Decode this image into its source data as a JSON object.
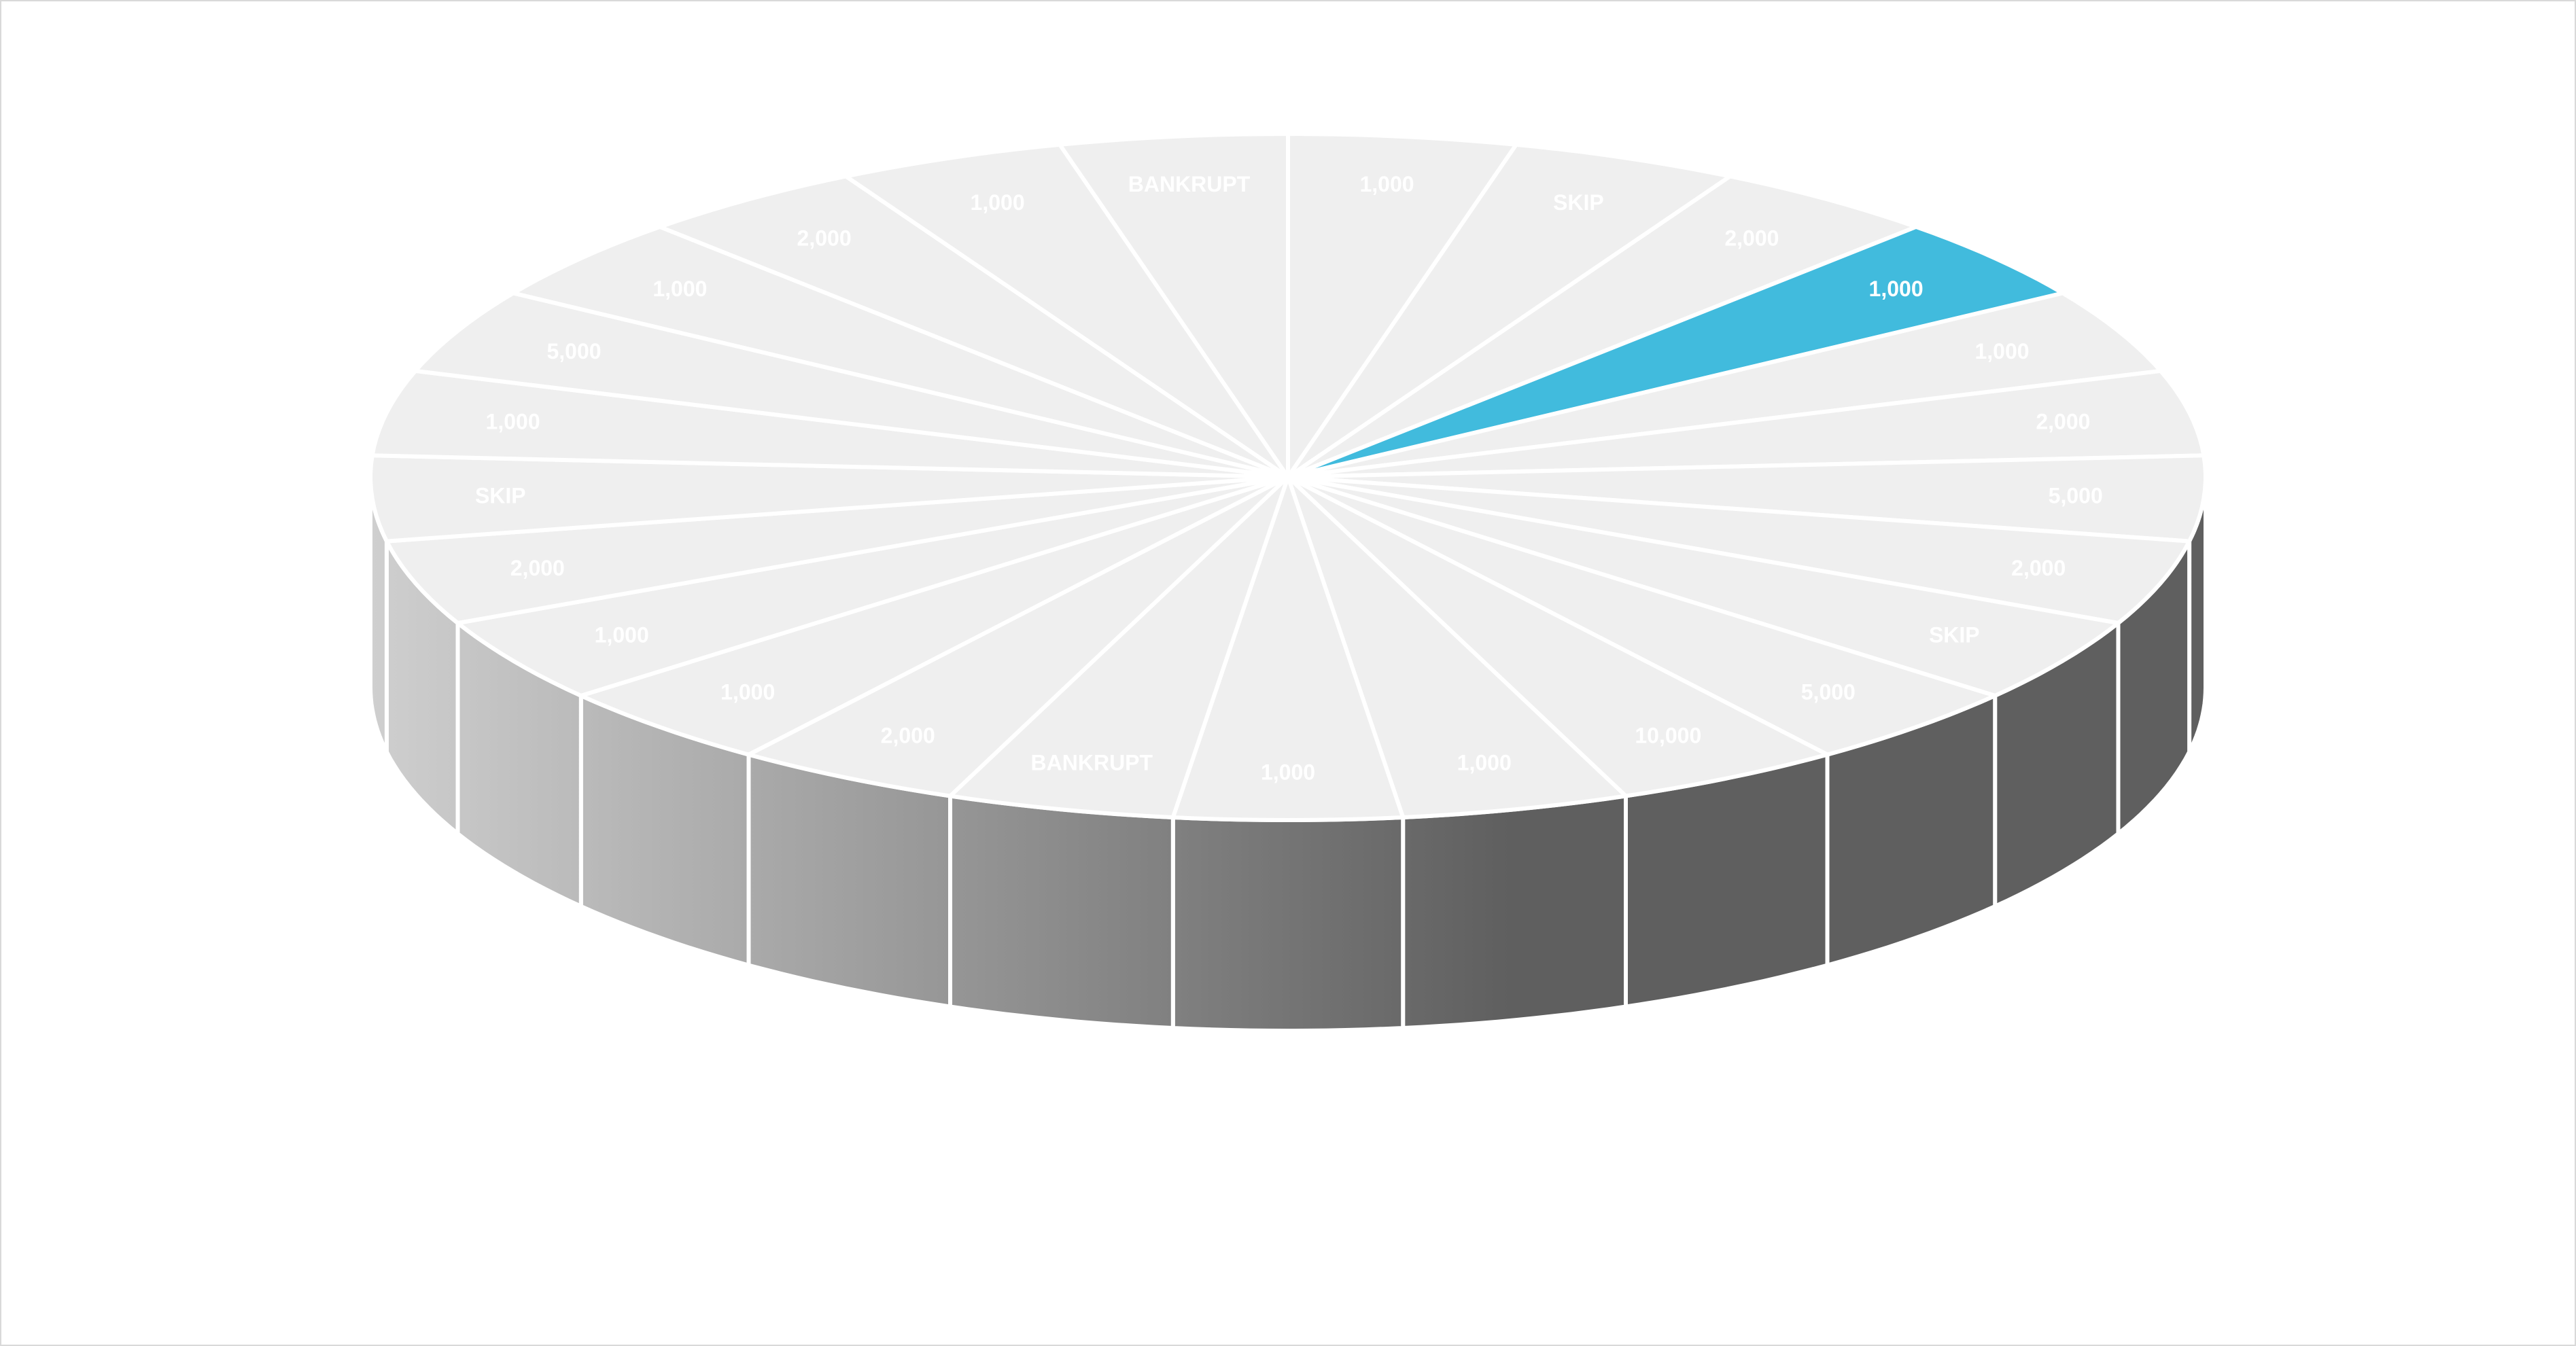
{
  "chart_data": {
    "type": "pie",
    "style": "3d-wheel",
    "segments": [
      "1,000",
      "SKIP",
      "2,000",
      "1,000",
      "1,000",
      "2,000",
      "5,000",
      "2,000",
      "SKIP",
      "5,000",
      "10,000",
      "1,000",
      "1,000",
      "BANKRUPT",
      "2,000",
      "1,000",
      "1,000",
      "2,000",
      "SKIP",
      "1,000",
      "5,000",
      "1,000",
      "2,000",
      "1,000",
      "BANKRUPT"
    ],
    "values": [
      1,
      1,
      1,
      1,
      1,
      1,
      1,
      1,
      1,
      1,
      1,
      1,
      1,
      1,
      1,
      1,
      1,
      1,
      1,
      1,
      1,
      1,
      1,
      1,
      1
    ],
    "highlighted_index": 3,
    "colors": {
      "face": "#efefef",
      "highlight": "#41bbdd",
      "divider": "#ffffff",
      "label": "#ffffff",
      "side_light": "#cfcfcf",
      "side_dark": "#5f5f5f",
      "frame": "#d9d9d9"
    }
  }
}
